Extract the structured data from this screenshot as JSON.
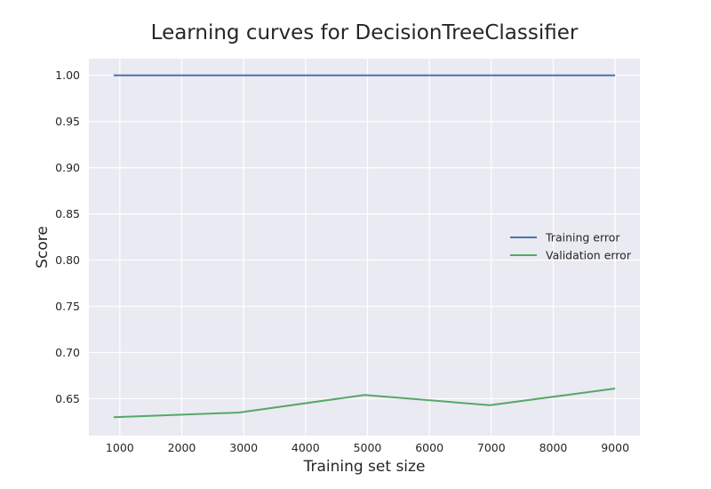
{
  "chart_data": {
    "type": "line",
    "title": "Learning curves for DecisionTreeClassifier",
    "xlabel": "Training set size",
    "ylabel": "Score",
    "xlim": [
      500,
      9400
    ],
    "ylim": [
      0.61,
      1.018
    ],
    "x_ticks": [
      1000,
      2000,
      3000,
      4000,
      5000,
      6000,
      7000,
      8000,
      9000
    ],
    "y_ticks": [
      0.65,
      0.7,
      0.75,
      0.8,
      0.85,
      0.9,
      0.95,
      1.0
    ],
    "grid": true,
    "legend_position": "center-right",
    "series": [
      {
        "name": "Training error",
        "color": "#4c72b0",
        "x": [
          900,
          2925,
          4950,
          6975,
          9000
        ],
        "y": [
          1.0,
          1.0,
          1.0,
          1.0,
          1.0
        ]
      },
      {
        "name": "Validation error",
        "color": "#55a868",
        "x": [
          900,
          2925,
          4950,
          6975,
          9000
        ],
        "y": [
          0.63,
          0.635,
          0.654,
          0.643,
          0.661
        ]
      }
    ]
  }
}
